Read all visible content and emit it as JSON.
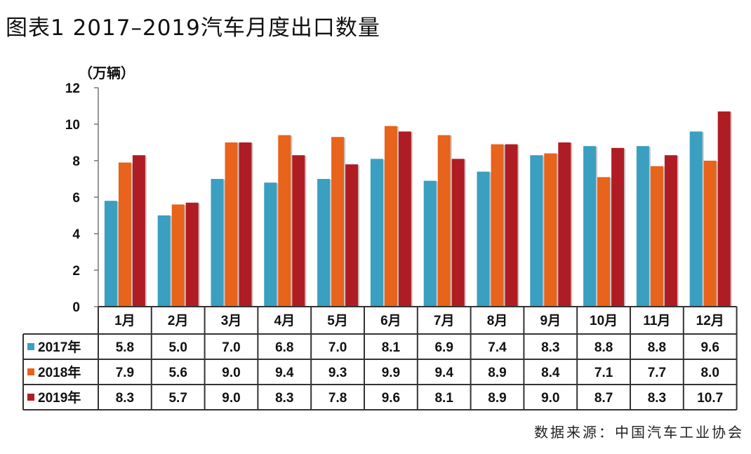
{
  "title": "图表1 2017–2019汽车月度出口数量",
  "unit": "（万辆）",
  "source": "数据来源：中国汽车工业协会",
  "chart_data": {
    "type": "bar",
    "categories": [
      "1月",
      "2月",
      "3月",
      "4月",
      "5月",
      "6月",
      "7月",
      "8月",
      "9月",
      "10月",
      "11月",
      "12月"
    ],
    "series": [
      {
        "name": "2017年",
        "color": "#3a9fc0",
        "values": [
          5.8,
          5.0,
          7.0,
          6.8,
          7.0,
          8.1,
          6.9,
          7.4,
          8.3,
          8.8,
          8.8,
          9.6
        ],
        "labels": [
          "5.8",
          "5.0",
          "7.0",
          "6.8",
          "7.0",
          "8.1",
          "6.9",
          "7.4",
          "8.3",
          "8.8",
          "8.8",
          "9.6"
        ]
      },
      {
        "name": "2018年",
        "color": "#e8631b",
        "values": [
          7.9,
          5.6,
          9.0,
          9.4,
          9.3,
          9.9,
          9.4,
          8.9,
          8.4,
          7.1,
          7.7,
          8.0
        ],
        "labels": [
          "7.9",
          "5.6",
          "9.0",
          "9.4",
          "9.3",
          "9.9",
          "9.4",
          "8.9",
          "8.4",
          "7.1",
          "7.7",
          "8.0"
        ]
      },
      {
        "name": "2019年",
        "color": "#b01c24",
        "values": [
          8.3,
          5.7,
          9.0,
          8.3,
          7.8,
          9.6,
          8.1,
          8.9,
          9.0,
          8.7,
          8.3,
          10.7
        ],
        "labels": [
          "8.3",
          "5.7",
          "9.0",
          "8.3",
          "7.8",
          "9.6",
          "8.1",
          "8.9",
          "9.0",
          "8.7",
          "8.3",
          "10.7"
        ]
      }
    ],
    "yticks": [
      "0",
      "2",
      "4",
      "6",
      "8",
      "10",
      "12"
    ],
    "ylim": [
      0,
      12
    ],
    "grid": false,
    "legend": "in data table rows"
  }
}
